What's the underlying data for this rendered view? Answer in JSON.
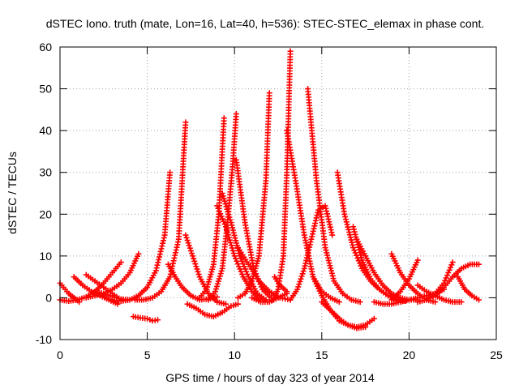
{
  "chart_data": {
    "type": "scatter",
    "title": "dSTEC Iono. truth (mate, Lon=16, Lat=40, h=536): STEC-STEC_elemax in phase cont.",
    "xlabel": "GPS time / hours of day 323 of year 2014",
    "ylabel": "dSTEC  / TECUs",
    "xlim": [
      0,
      25
    ],
    "ylim": [
      -10,
      60
    ],
    "x_ticks": [
      0,
      5,
      10,
      15,
      20,
      25
    ],
    "y_ticks": [
      -10,
      0,
      10,
      20,
      30,
      40,
      50,
      60
    ],
    "x_tick_labels": [
      "0",
      "5",
      "10",
      "15",
      "20",
      "25"
    ],
    "y_tick_labels": [
      "-10",
      "0",
      "10",
      "20",
      "30",
      "40",
      "50",
      "60"
    ],
    "grid": true,
    "marker": "plus",
    "color": "#ff0000",
    "series": [
      {
        "x": [
          0.0,
          0.2,
          0.5,
          0.8,
          1.1
        ],
        "y": [
          3.5,
          2.5,
          1.0,
          0.0,
          -1.0
        ]
      },
      {
        "x": [
          0.0,
          0.5,
          1.0,
          1.5,
          2.0,
          2.5,
          3.0,
          3.5
        ],
        "y": [
          -0.5,
          -0.8,
          -0.5,
          0.2,
          1.5,
          3.5,
          6.0,
          8.5
        ]
      },
      {
        "x": [
          0.8,
          1.3,
          1.8,
          2.3,
          2.8,
          3.3
        ],
        "y": [
          5.0,
          3.0,
          1.5,
          0.5,
          -0.5,
          -1.5
        ]
      },
      {
        "x": [
          1.5,
          2.0,
          2.5,
          3.0,
          3.5,
          4.0,
          4.5
        ],
        "y": [
          0.0,
          0.5,
          1.0,
          2.0,
          3.5,
          6.0,
          10.5
        ]
      },
      {
        "x": [
          1.5,
          2.0,
          2.5,
          3.0,
          3.5
        ],
        "y": [
          5.5,
          4.0,
          2.5,
          1.0,
          -0.5
        ]
      },
      {
        "x": [
          2.0,
          2.5,
          3.0,
          3.5,
          4.0
        ],
        "y": [
          1.5,
          1.0,
          0.3,
          -0.3,
          -0.5
        ]
      },
      {
        "x": [
          3.0,
          3.5,
          4.0,
          4.5,
          5.0,
          5.5,
          6.0,
          6.3
        ],
        "y": [
          -0.5,
          -0.8,
          -0.5,
          0.5,
          2.5,
          6.5,
          15.0,
          30.0
        ]
      },
      {
        "x": [
          4.3,
          4.8,
          5.3,
          5.8,
          6.3,
          6.8,
          7.2
        ],
        "y": [
          -0.5,
          -0.5,
          0.0,
          1.5,
          5.0,
          14.0,
          42.0
        ]
      },
      {
        "x": [
          4.2,
          4.6,
          5.0,
          5.3,
          5.6
        ],
        "y": [
          -4.5,
          -4.8,
          -5.0,
          -5.5,
          -5.3
        ]
      },
      {
        "x": [
          6.2,
          6.6,
          7.0,
          7.5,
          8.0,
          8.5,
          9.0
        ],
        "y": [
          8.0,
          5.0,
          2.5,
          0.5,
          -0.5,
          -0.3,
          0.2
        ]
      },
      {
        "x": [
          7.2,
          7.6,
          8.0,
          8.5,
          9.0,
          9.5
        ],
        "y": [
          15.0,
          10.0,
          5.0,
          1.0,
          -1.0,
          -1.5
        ]
      },
      {
        "x": [
          7.3,
          7.8,
          8.3,
          8.8,
          9.3,
          9.8,
          10.2
        ],
        "y": [
          -1.5,
          -2.5,
          -4.0,
          -4.5,
          -3.5,
          -2.0,
          -1.5
        ]
      },
      {
        "x": [
          8.0,
          8.4,
          8.8,
          9.1,
          9.4
        ],
        "y": [
          0.0,
          2.0,
          8.0,
          20.0,
          43.0
        ]
      },
      {
        "x": [
          8.5,
          8.9,
          9.3,
          9.6,
          9.9,
          10.1
        ],
        "y": [
          -0.5,
          1.5,
          7.0,
          18.0,
          32.0,
          44.0
        ]
      },
      {
        "x": [
          9.0,
          9.5,
          10.0,
          10.5,
          11.0,
          11.5
        ],
        "y": [
          22.0,
          17.0,
          10.0,
          5.0,
          1.5,
          -0.5
        ]
      },
      {
        "x": [
          9.3,
          9.8,
          10.3,
          10.8,
          11.3,
          11.8
        ],
        "y": [
          25.0,
          18.0,
          10.0,
          5.0,
          1.0,
          -0.5
        ]
      },
      {
        "x": [
          10.1,
          10.6,
          11.1,
          11.6,
          12.1
        ],
        "y": [
          33.0,
          18.0,
          7.0,
          2.0,
          0.0
        ]
      },
      {
        "x": [
          10.2,
          10.8,
          11.4,
          12.0,
          12.6,
          13.2
        ],
        "y": [
          12.0,
          8.0,
          4.0,
          1.5,
          0.0,
          -0.5
        ]
      },
      {
        "x": [
          10.2,
          10.6,
          11.0,
          11.4,
          11.8,
          12.0
        ],
        "y": [
          0.0,
          1.0,
          4.0,
          10.0,
          28.0,
          49.0
        ]
      },
      {
        "x": [
          11.0,
          11.5,
          12.0,
          12.5,
          13.0
        ],
        "y": [
          0.0,
          -1.0,
          -1.0,
          0.0,
          1.0
        ]
      },
      {
        "x": [
          12.3,
          12.6,
          13.0
        ],
        "y": [
          5.0,
          3.0,
          1.5
        ]
      },
      {
        "x": [
          12.2,
          12.5,
          12.8,
          13.0,
          13.2
        ],
        "y": [
          -0.5,
          2.0,
          10.0,
          30.0,
          59.0
        ]
      },
      {
        "x": [
          13.0,
          13.5,
          14.0,
          14.5,
          15.0,
          15.5,
          16.0
        ],
        "y": [
          40.0,
          28.0,
          15.0,
          5.0,
          1.5,
          0.0,
          -1.0
        ]
      },
      {
        "x": [
          13.2,
          13.6,
          14.0,
          14.4,
          14.8,
          15.2,
          15.6
        ],
        "y": [
          -0.5,
          2.0,
          7.0,
          14.0,
          21.0,
          22.0,
          15.0
        ]
      },
      {
        "x": [
          14.2,
          14.7,
          15.2,
          15.7,
          16.2,
          16.7,
          17.2
        ],
        "y": [
          50.0,
          28.0,
          12.0,
          4.0,
          1.0,
          -0.5,
          -1.0
        ]
      },
      {
        "x": [
          14.5,
          15.0,
          15.5,
          16.0,
          16.5,
          17.0,
          17.5,
          18.0
        ],
        "y": [
          5.0,
          0.5,
          -3.0,
          -5.5,
          -6.5,
          -7.0,
          -6.5,
          -5.0
        ]
      },
      {
        "x": [
          15.0,
          15.5,
          16.0,
          16.5,
          17.0,
          17.5
        ],
        "y": [
          -1.0,
          -3.0,
          -5.0,
          -6.5,
          -7.3,
          -7.0
        ]
      },
      {
        "x": [
          15.9,
          16.3,
          16.8,
          17.3,
          17.8,
          18.3,
          18.8
        ],
        "y": [
          30.0,
          20.0,
          12.0,
          7.0,
          4.0,
          2.0,
          0.5
        ]
      },
      {
        "x": [
          16.8,
          17.3,
          17.8,
          18.3,
          18.8,
          19.3,
          19.8
        ],
        "y": [
          17.0,
          9.0,
          4.5,
          2.0,
          0.5,
          -0.5,
          -0.8
        ]
      },
      {
        "x": [
          17.0,
          17.5,
          18.0,
          18.5,
          19.0,
          19.5,
          20.0,
          20.5
        ],
        "y": [
          14.0,
          10.0,
          6.0,
          3.0,
          1.0,
          0.0,
          -0.5,
          -0.5
        ]
      },
      {
        "x": [
          18.0,
          18.5,
          19.0,
          19.5,
          20.0,
          20.5,
          21.0,
          21.5,
          22.0
        ],
        "y": [
          -1.0,
          -1.5,
          -1.5,
          -1.0,
          -0.5,
          0.0,
          0.5,
          1.0,
          2.0
        ]
      },
      {
        "x": [
          19.0,
          19.5,
          20.0,
          20.5,
          21.0,
          21.5
        ],
        "y": [
          10.5,
          6.0,
          3.0,
          1.0,
          -0.5,
          -1.0
        ]
      },
      {
        "x": [
          19.0,
          19.5,
          20.0,
          20.5
        ],
        "y": [
          -0.5,
          1.5,
          4.5,
          9.0
        ]
      },
      {
        "x": [
          20.5,
          21.0,
          21.5,
          22.0,
          22.5,
          23.0
        ],
        "y": [
          3.0,
          1.5,
          0.5,
          -0.5,
          -1.0,
          -1.0
        ]
      },
      {
        "x": [
          20.5,
          21.0,
          21.5,
          22.0,
          22.5,
          23.0,
          23.5,
          24.0
        ],
        "y": [
          -1.0,
          -0.5,
          0.5,
          2.5,
          5.0,
          7.0,
          8.0,
          8.0
        ]
      },
      {
        "x": [
          21.0,
          21.5,
          22.0,
          22.5
        ],
        "y": [
          -0.3,
          1.0,
          3.5,
          8.5
        ]
      },
      {
        "x": [
          22.8,
          23.2,
          23.6,
          24.0
        ],
        "y": [
          5.0,
          2.0,
          0.5,
          -0.5
        ]
      }
    ]
  }
}
